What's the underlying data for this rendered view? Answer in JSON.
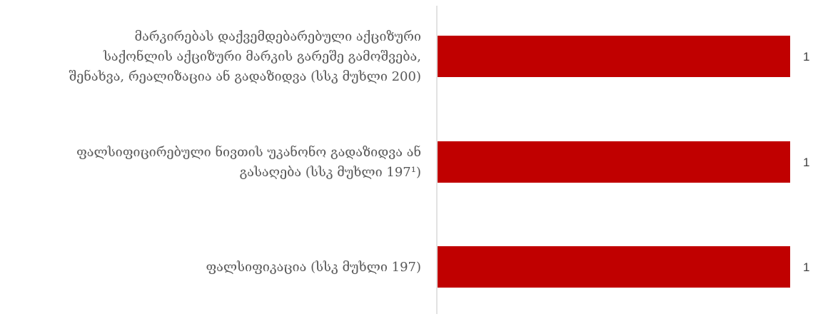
{
  "chart_data": {
    "type": "bar",
    "orientation": "horizontal",
    "categories": [
      [
        "მარკირებას დაქვემდებარებული აქციზური",
        "საქონლის აქციზური მარკის გარეშე გამოშვება,",
        "შენახვა, რეალიზაცია ან გადაზიდვა (სსკ  მუხლი 200)"
      ],
      [
        "ფალსიფიცირებული ნივთის უკანონო გადაზიდვა ან",
        "გასაღება (სსკ   მუხლი 197¹)"
      ],
      [
        "ფალსიფიკაცია (სსკ მუხლი 197)"
      ]
    ],
    "values": [
      1,
      1,
      1
    ],
    "data_labels": [
      "1",
      "1",
      "1"
    ],
    "xlim": [
      0,
      1
    ],
    "bar_color": "#c00000",
    "axis_color": "#d9d9d9",
    "grid": false,
    "legend": "none"
  }
}
